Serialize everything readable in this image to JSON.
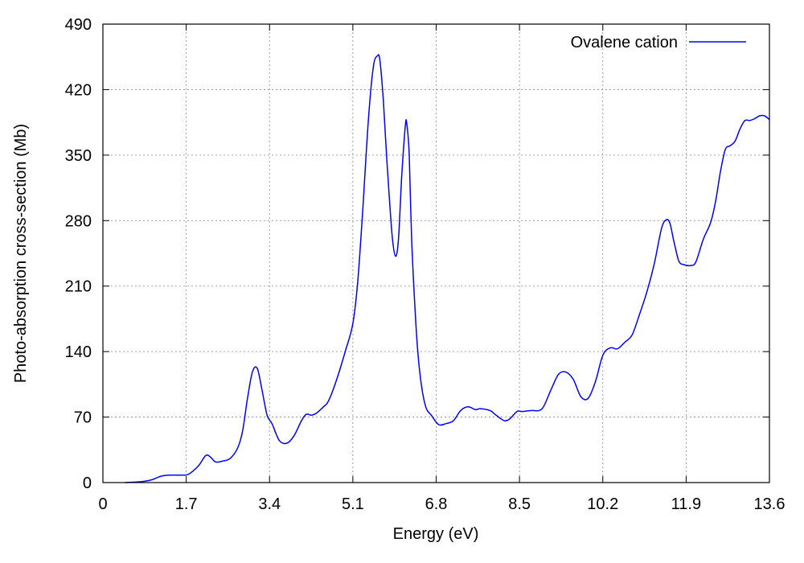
{
  "chart_data": {
    "type": "line",
    "xlabel": "Energy (eV)",
    "ylabel": "Photo-absorption cross-section (Mb)",
    "xlim": [
      0,
      13.6
    ],
    "ylim": [
      0,
      490
    ],
    "xticks": [
      0,
      1.7,
      3.4,
      5.1,
      6.8,
      8.5,
      10.2,
      11.9,
      13.6
    ],
    "xtick_labels": [
      "0",
      "1.7",
      "3.4",
      "5.1",
      "6.8",
      "8.5",
      "10.2",
      "11.9",
      "13.6"
    ],
    "yticks": [
      0,
      70,
      140,
      210,
      280,
      350,
      420,
      490
    ],
    "ytick_labels": [
      "0",
      "70",
      "140",
      "210",
      "280",
      "350",
      "420",
      "490"
    ],
    "grid": true,
    "legend_position": "top-right",
    "series": [
      {
        "name": "Ovalene cation",
        "color": "#0000ff",
        "x": [
          0.45,
          0.8,
          1.0,
          1.2,
          1.4,
          1.6,
          1.75,
          1.95,
          2.1,
          2.2,
          2.3,
          2.45,
          2.6,
          2.75,
          2.85,
          2.95,
          3.05,
          3.15,
          3.25,
          3.35,
          3.45,
          3.6,
          3.75,
          3.9,
          4.05,
          4.15,
          4.25,
          4.35,
          4.5,
          4.6,
          4.75,
          4.95,
          5.1,
          5.2,
          5.3,
          5.42,
          5.52,
          5.6,
          5.65,
          5.72,
          5.8,
          5.9,
          5.97,
          6.03,
          6.1,
          6.17,
          6.2,
          6.25,
          6.3,
          6.38,
          6.45,
          6.52,
          6.6,
          6.7,
          6.85,
          7.0,
          7.15,
          7.3,
          7.45,
          7.6,
          7.7,
          7.9,
          8.0,
          8.1,
          8.2,
          8.3,
          8.45,
          8.55,
          8.75,
          8.9,
          9.0,
          9.15,
          9.3,
          9.45,
          9.6,
          9.75,
          9.9,
          10.05,
          10.2,
          10.35,
          10.5,
          10.65,
          10.8,
          10.95,
          11.1,
          11.25,
          11.4,
          11.5,
          11.57,
          11.65,
          11.75,
          11.85,
          12.0,
          12.1,
          12.25,
          12.4,
          12.5,
          12.6,
          12.7,
          12.8,
          12.9,
          13.0,
          13.1,
          13.2,
          13.3,
          13.4,
          13.5,
          13.6
        ],
        "y": [
          0,
          1,
          3,
          7,
          8,
          8,
          9,
          18,
          29,
          27,
          22,
          23,
          26,
          37,
          55,
          90,
          118,
          122,
          98,
          72,
          63,
          45,
          42,
          50,
          66,
          73,
          72,
          74,
          81,
          87,
          107,
          141,
          170,
          215,
          290,
          390,
          445,
          456,
          452,
          410,
          340,
          265,
          242,
          260,
          330,
          381,
          384,
          350,
          260,
          175,
          125,
          97,
          79,
          72,
          62,
          63,
          66,
          77,
          81,
          78,
          79,
          77,
          73,
          69,
          66,
          68,
          76,
          76,
          77,
          77,
          82,
          100,
          116,
          118,
          110,
          92,
          90,
          108,
          136,
          144,
          143,
          150,
          158,
          180,
          204,
          234,
          272,
          281,
          277,
          258,
          237,
          233,
          232,
          236,
          260,
          278,
          300,
          332,
          356,
          360,
          365,
          378,
          387,
          387,
          389,
          392,
          392,
          388
        ]
      }
    ]
  }
}
